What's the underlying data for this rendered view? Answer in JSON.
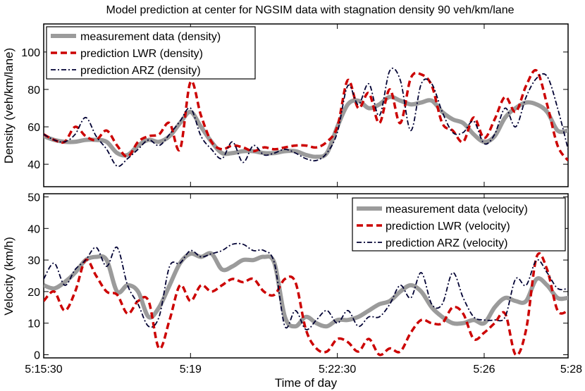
{
  "title": "Model prediction at center for NGSIM data with stagnation density 90 veh/km/lane",
  "colors": {
    "measurement": "#9b9b9b",
    "lwr": "#cc0000",
    "arz": "#000033"
  },
  "chart_data": [
    {
      "type": "line",
      "id": "density",
      "title": "Model prediction at center for NGSIM data with stagnation density 90 veh/km/lane",
      "ylabel": "Density (veh/km/lane)",
      "xlabel": "",
      "xlim": [
        0,
        12.5
      ],
      "ylim": [
        28,
        115
      ],
      "yticks": [
        40,
        60,
        80,
        100
      ],
      "ytick_labels": [
        "40",
        "60",
        "80",
        "100"
      ],
      "xticks": [
        0,
        3.5,
        7,
        10.5,
        12.5
      ],
      "legend": "top-left",
      "x": [
        0,
        0.25,
        0.5,
        0.75,
        1,
        1.25,
        1.5,
        1.75,
        2,
        2.25,
        2.5,
        2.75,
        3,
        3.25,
        3.5,
        3.75,
        4,
        4.25,
        4.5,
        4.75,
        5,
        5.25,
        5.5,
        5.75,
        6,
        6.25,
        6.5,
        6.75,
        7,
        7.25,
        7.5,
        7.75,
        8,
        8.25,
        8.5,
        8.75,
        9,
        9.25,
        9.5,
        9.75,
        10,
        10.25,
        10.5,
        10.75,
        11,
        11.25,
        11.5,
        11.75,
        12,
        12.25,
        12.5
      ],
      "series": [
        {
          "name": "measurement data (density)",
          "style": "measurement",
          "values": [
            55,
            53,
            52,
            52,
            53,
            53,
            52,
            46,
            45,
            50,
            53,
            52,
            55,
            62,
            68,
            60,
            52,
            46,
            46,
            47,
            47,
            46,
            46,
            47,
            47,
            45,
            44,
            46,
            60,
            72,
            74,
            70,
            72,
            76,
            74,
            72,
            73,
            74,
            68,
            64,
            62,
            56,
            52,
            55,
            65,
            70,
            73,
            72,
            68,
            58,
            58
          ]
        },
        {
          "name": "prediction LWR (density)",
          "style": "lwr",
          "values": [
            56,
            53,
            52,
            60,
            55,
            53,
            58,
            50,
            44,
            52,
            55,
            56,
            62,
            48,
            84,
            66,
            52,
            48,
            50,
            49,
            47,
            49,
            48,
            49,
            50,
            50,
            49,
            52,
            60,
            85,
            70,
            78,
            62,
            80,
            62,
            86,
            88,
            82,
            62,
            58,
            52,
            65,
            54,
            64,
            76,
            68,
            82,
            90,
            72,
            50,
            42
          ]
        },
        {
          "name": "prediction ARZ (density)",
          "style": "arz",
          "values": [
            56,
            53,
            52,
            56,
            65,
            55,
            48,
            39,
            43,
            48,
            53,
            50,
            56,
            63,
            70,
            55,
            48,
            43,
            52,
            41,
            50,
            45,
            46,
            48,
            46,
            43,
            42,
            46,
            57,
            82,
            72,
            83,
            66,
            90,
            85,
            58,
            83,
            83,
            68,
            57,
            57,
            63,
            51,
            56,
            70,
            60,
            76,
            86,
            87,
            70,
            48
          ]
        }
      ]
    },
    {
      "type": "line",
      "id": "velocity",
      "title": "",
      "ylabel": "Velocity (km/h)",
      "xlabel": "Time of day",
      "xlim": [
        0,
        12.5
      ],
      "ylim": [
        -1,
        51
      ],
      "yticks": [
        0,
        10,
        20,
        30,
        40,
        50
      ],
      "ytick_labels": [
        "0",
        "10",
        "20",
        "30",
        "40",
        "50"
      ],
      "xticks": [
        0,
        3.5,
        7,
        10.5,
        12.5
      ],
      "xtick_labels": [
        "5:15:30",
        "5:19",
        "5:22:30",
        "5:26",
        "5:28"
      ],
      "legend": "top-right",
      "x": [
        0,
        0.25,
        0.5,
        0.75,
        1,
        1.25,
        1.5,
        1.75,
        2,
        2.25,
        2.5,
        2.75,
        3,
        3.25,
        3.5,
        3.75,
        4,
        4.25,
        4.5,
        4.75,
        5,
        5.25,
        5.5,
        5.75,
        6,
        6.25,
        6.5,
        6.75,
        7,
        7.25,
        7.5,
        7.75,
        8,
        8.25,
        8.5,
        8.75,
        9,
        9.25,
        9.5,
        9.75,
        10,
        10.25,
        10.5,
        10.75,
        11,
        11.25,
        11.5,
        11.75,
        12,
        12.25,
        12.5
      ],
      "series": [
        {
          "name": "measurement data (velocity)",
          "style": "measurement",
          "values": [
            22,
            21,
            23,
            26,
            30,
            31,
            30,
            20,
            22,
            20,
            12,
            15,
            22,
            29,
            32,
            31,
            32,
            27,
            28,
            30,
            30,
            31,
            29,
            12,
            9,
            12,
            10,
            9,
            11,
            11,
            12,
            14,
            16,
            17,
            20,
            22,
            20,
            15,
            12,
            10,
            10,
            11,
            10,
            15,
            18,
            17,
            17,
            24,
            22,
            18,
            18
          ]
        },
        {
          "name": "prediction LWR (velocity)",
          "style": "lwr",
          "values": [
            17,
            20,
            14,
            20,
            30,
            25,
            20,
            19,
            13,
            17,
            17,
            2,
            11,
            22,
            17,
            22,
            20,
            22,
            24,
            23,
            24,
            20,
            19,
            24,
            23,
            8,
            2,
            1,
            5,
            4,
            1,
            5,
            0,
            2,
            1,
            7,
            11,
            10,
            10,
            15,
            13,
            5,
            7,
            10,
            13,
            0,
            8,
            31,
            27,
            14,
            14
          ]
        },
        {
          "name": "prediction ARZ (velocity)",
          "style": "arz",
          "values": [
            24,
            29,
            22,
            27,
            30,
            34,
            28,
            34,
            22,
            16,
            9,
            12,
            28,
            29,
            33,
            31,
            32,
            33,
            35,
            35,
            33,
            33,
            29,
            9,
            14,
            8,
            11,
            14,
            10,
            14,
            9,
            12,
            12,
            16,
            22,
            18,
            26,
            16,
            16,
            26,
            18,
            12,
            11,
            11,
            12,
            24,
            22,
            30,
            26,
            21,
            21
          ]
        }
      ]
    }
  ]
}
